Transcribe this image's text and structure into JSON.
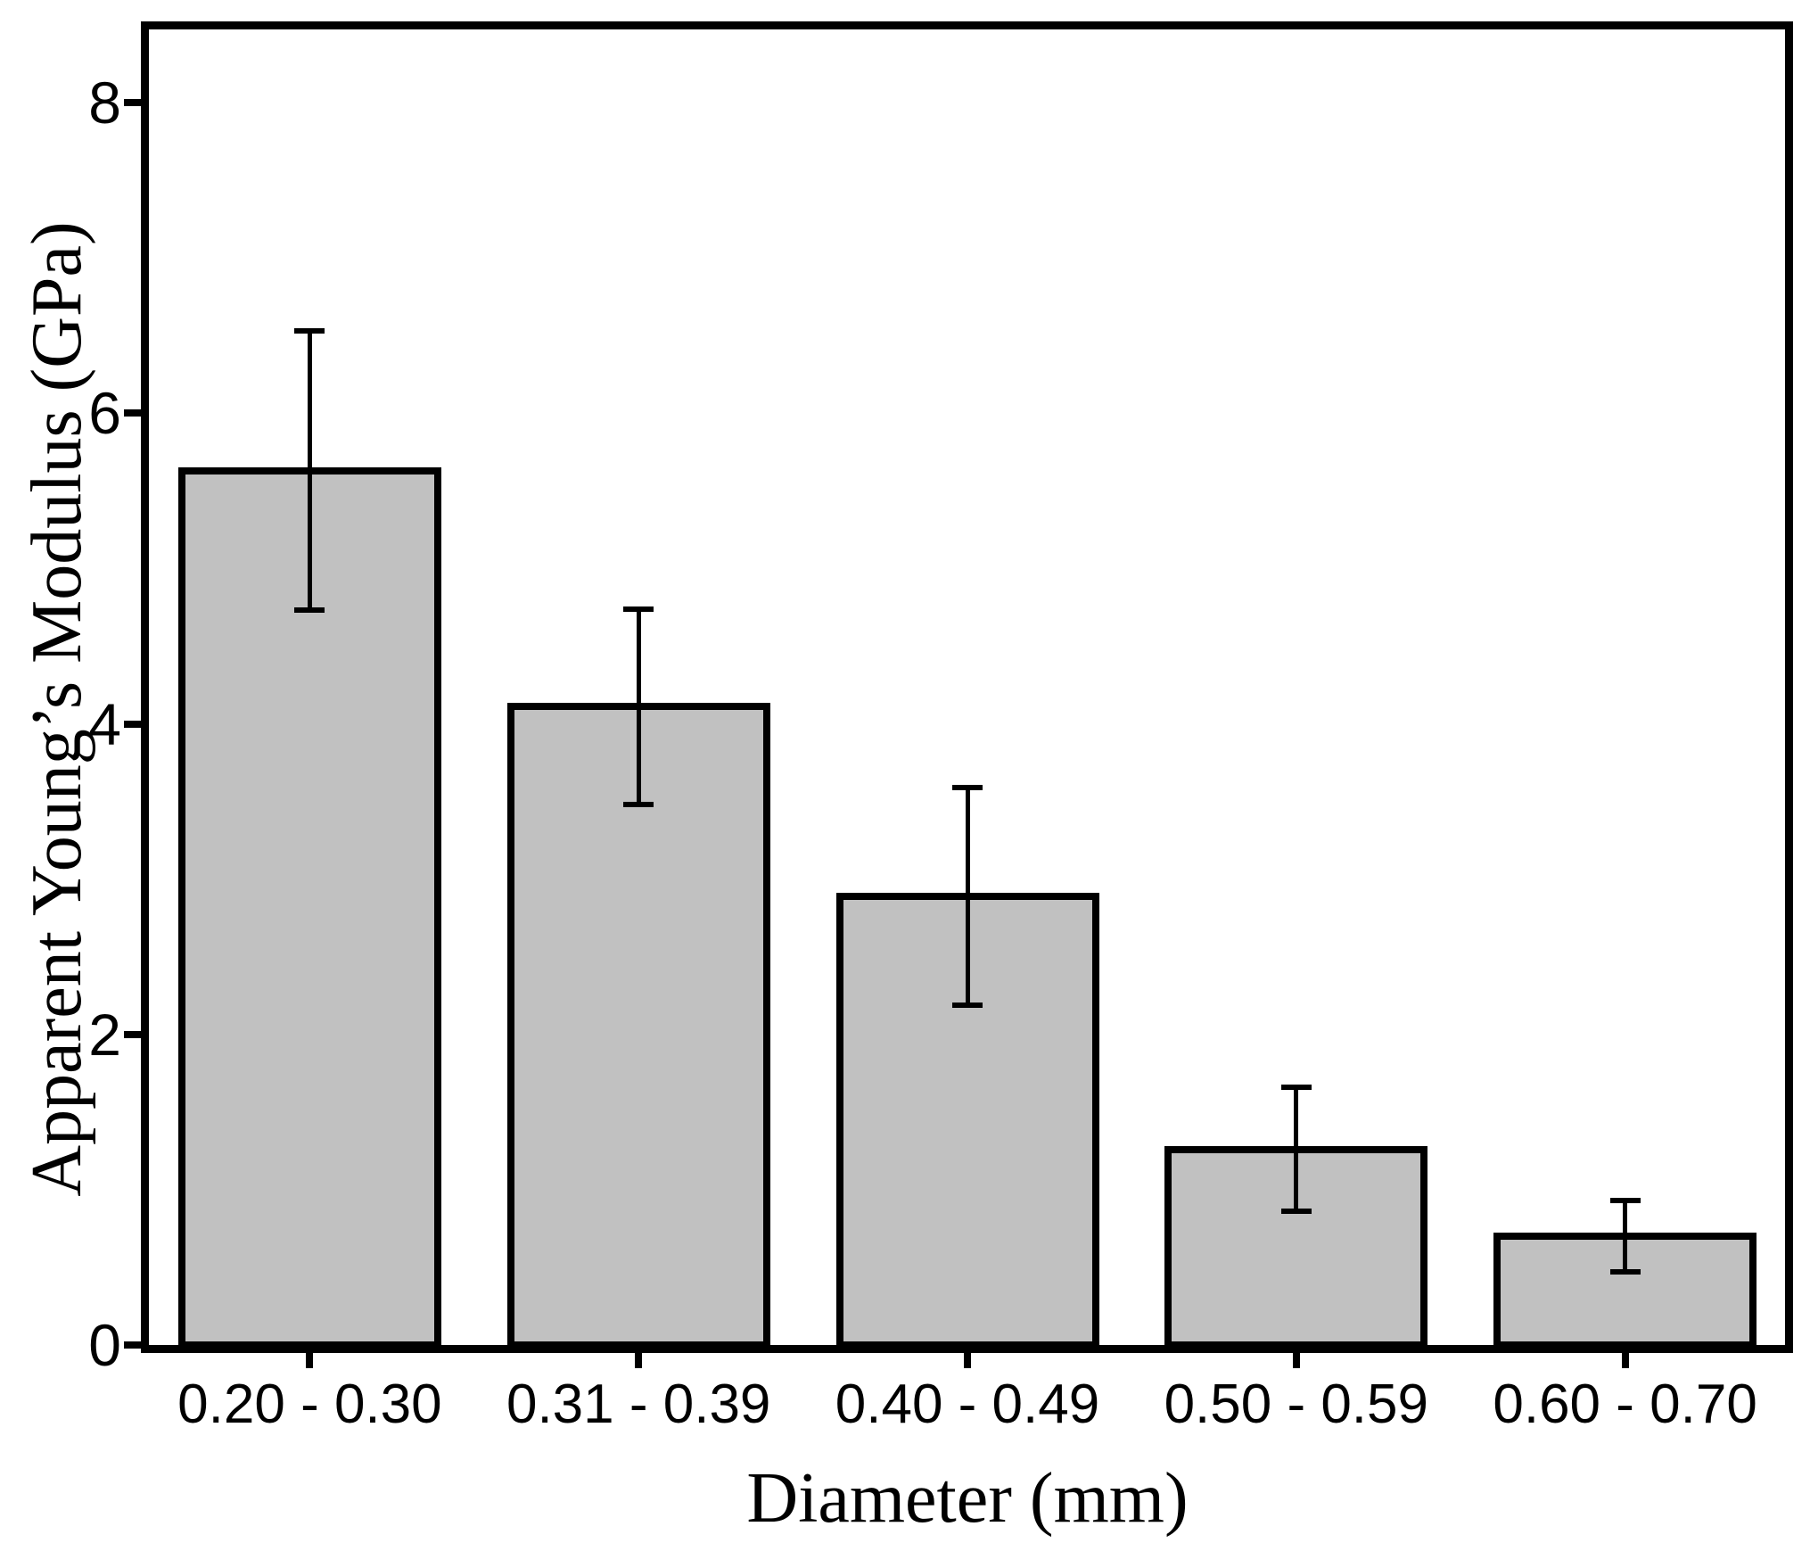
{
  "figure": {
    "background_color": "#ffffff",
    "bar_fill_color": "#c1c1c1",
    "line_color": "#000000"
  },
  "chart_data": {
    "type": "bar",
    "title": "",
    "xlabel": "Diameter (mm)",
    "ylabel": "Apparent Young’s Modulus (GPa)",
    "categories": [
      "0.20 - 0.30",
      "0.31 - 0.39",
      "0.40 - 0.49",
      "0.50 - 0.59",
      "0.60 - 0.70"
    ],
    "values": [
      5.63,
      4.11,
      2.89,
      1.26,
      0.7
    ],
    "error_bars": [
      0.9,
      0.63,
      0.7,
      0.4,
      0.23
    ],
    "error_bar_style": "plus-minus with caps",
    "y_ticks": [
      0,
      2,
      4,
      6,
      8
    ],
    "ylim": [
      0,
      8.5
    ],
    "grid": false,
    "legend": null,
    "frame": "full box"
  }
}
